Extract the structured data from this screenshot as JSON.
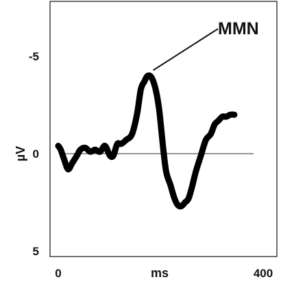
{
  "chart_data": {
    "type": "line",
    "xlabel": "ms",
    "ylabel": "µV",
    "xlim": [
      0,
      400
    ],
    "ylim": [
      -7,
      6.5
    ],
    "y_inverted": true,
    "grid": false,
    "x_ticks": [
      {
        "value": 0,
        "label": "0"
      },
      {
        "value": 400,
        "label": "400"
      }
    ],
    "y_ticks": [
      {
        "value": -5,
        "label": "-5"
      },
      {
        "value": 0,
        "label": "0"
      },
      {
        "value": 5,
        "label": "5"
      }
    ],
    "baseline": {
      "y": 0,
      "x_start": 0,
      "x_end": 400,
      "color": "#555555"
    },
    "series": [
      {
        "color": "#000000",
        "x": [
          0,
          5,
          12,
          20,
          28,
          38,
          45,
          55,
          65,
          75,
          85,
          95,
          105,
          112,
          120,
          128,
          138,
          150,
          160,
          168,
          175,
          182,
          190,
          198,
          205,
          210,
          215,
          220,
          228,
          235,
          242,
          250,
          258,
          265,
          272,
          280,
          290,
          300,
          310,
          318,
          326,
          334,
          342,
          350,
          358
        ],
        "y": [
          -0.4,
          -0.2,
          0.3,
          0.8,
          0.5,
          0.1,
          -0.2,
          -0.3,
          -0.1,
          -0.2,
          -0.1,
          -0.4,
          0.1,
          0.1,
          -0.5,
          -0.5,
          -0.7,
          -1.0,
          -2.0,
          -3.3,
          -3.7,
          -4.0,
          -3.9,
          -3.3,
          -2.3,
          -1.1,
          0.1,
          1.0,
          1.6,
          2.2,
          2.6,
          2.7,
          2.5,
          2.3,
          1.7,
          0.9,
          0.1,
          -0.7,
          -1.0,
          -1.5,
          -1.7,
          -1.9,
          -1.9,
          -2.0,
          -2.0
        ]
      }
    ],
    "annotations": [
      {
        "text": "MMN",
        "points_to": {
          "x": 182,
          "y": -4.0
        }
      }
    ]
  }
}
